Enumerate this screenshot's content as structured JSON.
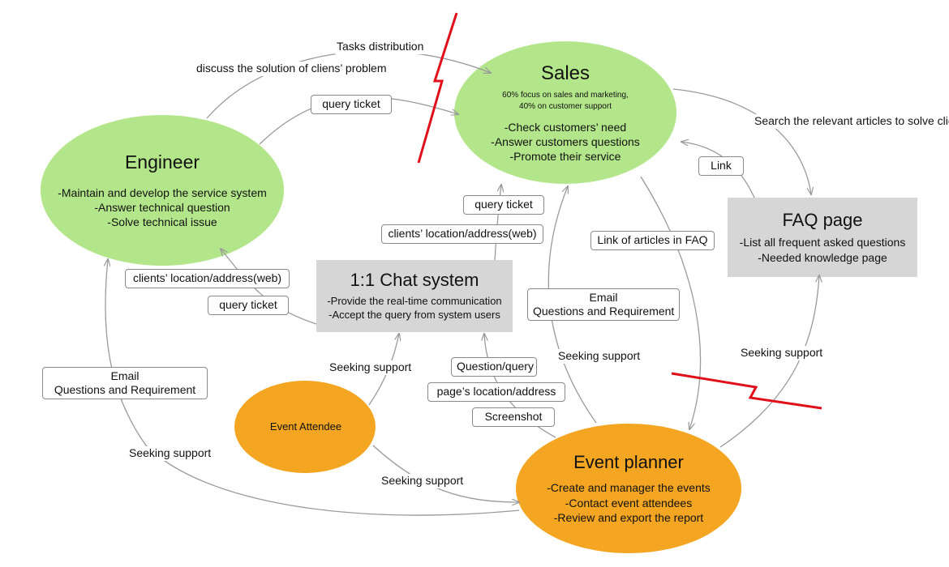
{
  "colors": {
    "green_node": "#b3e68a",
    "orange_node": "#f4a623",
    "gray_node": "#d6d6d6",
    "arrow": "#9a9a9a",
    "red_bolt": "#e0101a"
  },
  "nodes": {
    "sales": {
      "title": "Sales",
      "subtitle": [
        "60% focus on sales and marketing,",
        "40% on customer support"
      ],
      "items": [
        "-Check customers’ need",
        "-Answer customers questions",
        "-Promote their service"
      ]
    },
    "engineer": {
      "title": "Engineer",
      "items": [
        "-Maintain and develop the service system",
        "-Answer technical question",
        "-Solve technical issue"
      ]
    },
    "faq": {
      "title": "FAQ page",
      "items": [
        "-List all frequent asked questions",
        "-Needed knowledge page"
      ]
    },
    "chat": {
      "title": "1:1 Chat system",
      "items": [
        "-Provide the real-time communication",
        "-Accept the query from system users"
      ]
    },
    "attendee": {
      "title": "Event Attendee"
    },
    "planner": {
      "title": "Event planner",
      "items": [
        "-Create and manager the events",
        "-Contact event attendees",
        "-Review and export the report"
      ]
    }
  },
  "boxes": {
    "query_ticket_top": "query ticket",
    "link": "Link",
    "query_ticket_mid": "query ticket",
    "clients_location_right": "clients’ location/address(web)",
    "link_articles": "Link of articles in FAQ",
    "clients_location_left": "clients’ location/address(web)",
    "query_ticket_left": "query ticket",
    "email_right": [
      "Email",
      "Questions and Requirement"
    ],
    "email_left": [
      "Email",
      "Questions and Requirement"
    ],
    "question_query": "Question/query",
    "page_location": "page’s location/address",
    "screenshot": "Screenshot"
  },
  "labels": {
    "tasks_distribution": "Tasks distribution",
    "discuss_solution": [
      "discuss the solution",
      "of cliens’ problem"
    ],
    "search_articles": [
      "Search the relevant articles",
      "to solve clients’ problem"
    ],
    "seeking_support_chat": "Seeking support",
    "seeking_support_mid": "Seeking support",
    "seeking_support_faq": "Seeking support",
    "seeking_support_left": "Seeking support",
    "seeking_support_bottom": "Seeking support"
  }
}
